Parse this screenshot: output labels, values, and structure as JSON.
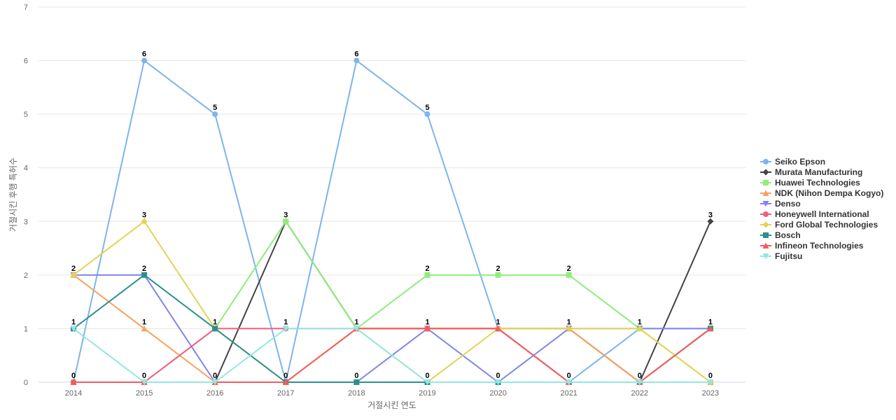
{
  "chart_data": {
    "type": "line",
    "title": "",
    "xlabel": "거절시킨 연도",
    "ylabel": "거절시킨 후행 특허수",
    "x": [
      2014,
      2015,
      2016,
      2017,
      2018,
      2019,
      2020,
      2021,
      2022,
      2023
    ],
    "ylim": [
      0,
      7
    ],
    "yticks": [
      0,
      1,
      2,
      3,
      4,
      5,
      6,
      7
    ],
    "grid": true,
    "legend_position": "right",
    "series": [
      {
        "name": "Seiko Epson",
        "color": "#7cb5ec",
        "marker": "circle",
        "values": [
          0,
          6,
          5,
          0,
          6,
          5,
          1,
          0,
          1,
          1
        ]
      },
      {
        "name": "Murata Manufacturing",
        "color": "#434348",
        "marker": "diamond",
        "values": [
          0,
          0,
          0,
          3,
          1,
          1,
          1,
          1,
          0,
          3
        ]
      },
      {
        "name": "Huawei Technologies",
        "color": "#90ed7d",
        "marker": "square",
        "values": [
          0,
          0,
          1,
          3,
          1,
          2,
          2,
          2,
          1,
          0
        ]
      },
      {
        "name": "NDK (Nihon Dempa Kogyo)",
        "color": "#f7a35c",
        "marker": "triangle",
        "values": [
          2,
          1,
          0,
          0,
          1,
          1,
          1,
          1,
          0,
          0
        ]
      },
      {
        "name": "Denso",
        "color": "#8085e9",
        "marker": "triangle-down",
        "values": [
          2,
          2,
          0,
          0,
          0,
          1,
          0,
          1,
          1,
          1
        ]
      },
      {
        "name": "Honeywell International",
        "color": "#f15c80",
        "marker": "circle",
        "values": [
          0,
          0,
          1,
          1,
          1,
          1,
          1,
          0,
          0,
          1
        ]
      },
      {
        "name": "Ford Global Technologies",
        "color": "#e4d354",
        "marker": "diamond",
        "values": [
          2,
          3,
          1,
          0,
          1,
          0,
          1,
          1,
          1,
          0
        ]
      },
      {
        "name": "Bosch",
        "color": "#2b908f",
        "marker": "square",
        "values": [
          1,
          2,
          1,
          0,
          0,
          0,
          0,
          0,
          0,
          1
        ]
      },
      {
        "name": "Infineon Technologies",
        "color": "#f45b5b",
        "marker": "triangle",
        "values": [
          0,
          0,
          0,
          0,
          1,
          1,
          1,
          0,
          0,
          1
        ]
      },
      {
        "name": "Fujitsu",
        "color": "#91e8e1",
        "marker": "triangle-down",
        "values": [
          1,
          0,
          0,
          1,
          1,
          0,
          0,
          0,
          0,
          0
        ]
      }
    ],
    "data_labels": [
      {
        "x": 2014,
        "values": [
          "2",
          "1",
          "0"
        ]
      },
      {
        "x": 2015,
        "values": [
          "6",
          "3",
          "2",
          "1",
          "0"
        ]
      },
      {
        "x": 2016,
        "values": [
          "5",
          "1",
          "0"
        ]
      },
      {
        "x": 2017,
        "values": [
          "3",
          "1",
          "0"
        ]
      },
      {
        "x": 2018,
        "values": [
          "6",
          "1",
          "0"
        ]
      },
      {
        "x": 2019,
        "values": [
          "5",
          "2",
          "1",
          "0"
        ]
      },
      {
        "x": 2020,
        "values": [
          "2",
          "1",
          "0"
        ]
      },
      {
        "x": 2021,
        "values": [
          "2",
          "1",
          "0"
        ]
      },
      {
        "x": 2022,
        "values": [
          "1",
          "0"
        ]
      },
      {
        "x": 2023,
        "values": [
          "3",
          "1",
          "0"
        ]
      }
    ]
  }
}
